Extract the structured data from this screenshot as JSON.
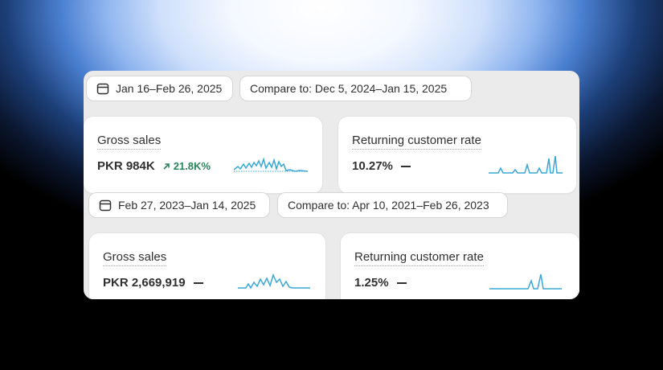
{
  "section1": {
    "date_range": "Jan 16–Feb 26, 2025",
    "compare": "Compare to: Dec 5, 2024–Jan 15, 2025",
    "gross_sales": {
      "title": "Gross sales",
      "value": "PKR 984K",
      "change": "21.8K%"
    },
    "returning_rate": {
      "title": "Returning customer rate",
      "value": "10.27%"
    }
  },
  "section2": {
    "date_range": "Feb 27, 2023–Jan 14, 2025",
    "compare": "Compare to: Apr 10, 2021–Feb 26, 2023",
    "gross_sales": {
      "title": "Gross sales",
      "value": "PKR 2,669,919"
    },
    "returning_rate": {
      "title": "Returning customer rate",
      "value": "1.25%"
    }
  },
  "colors": {
    "accent": "#29845a",
    "sparkline": "#3aa7d6"
  },
  "icons": [
    "calendar-icon",
    "arrow-up-right-icon",
    "sparkline"
  ]
}
